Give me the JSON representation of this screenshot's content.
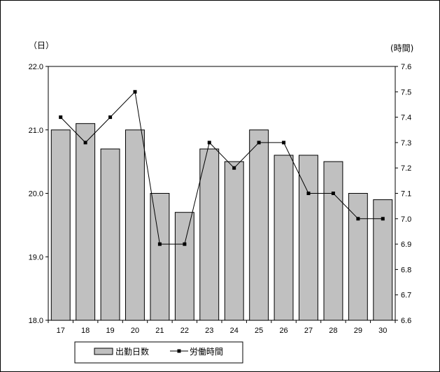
{
  "chart_data": {
    "type": "bar+line",
    "categories": [
      "17",
      "18",
      "19",
      "20",
      "21",
      "22",
      "23",
      "24",
      "25",
      "26",
      "27",
      "28",
      "29",
      "30"
    ],
    "series": [
      {
        "name": "出勤日数",
        "type": "bar",
        "axis": "left",
        "values": [
          21.0,
          21.1,
          20.7,
          21.0,
          20.0,
          19.7,
          20.7,
          20.5,
          21.0,
          20.6,
          20.6,
          20.5,
          20.0,
          19.9
        ],
        "color": "#c0c0c0"
      },
      {
        "name": "労働時間",
        "type": "line",
        "axis": "right",
        "values": [
          7.4,
          7.3,
          7.4,
          7.5,
          6.9,
          6.9,
          7.3,
          7.2,
          7.3,
          7.3,
          7.1,
          7.1,
          7.0,
          7.0
        ],
        "color": "#000000"
      }
    ],
    "y_left": {
      "unit_label": "（日）",
      "ylim": [
        18.0,
        22.0
      ],
      "ticks": [
        "18.0",
        "19.0",
        "20.0",
        "21.0",
        "22.0"
      ]
    },
    "y_right": {
      "unit_label": "(時間)",
      "ylim": [
        6.6,
        7.6
      ],
      "ticks": [
        "6.6",
        "6.7",
        "6.8",
        "6.9",
        "7.0",
        "7.1",
        "7.2",
        "7.3",
        "7.4",
        "7.5",
        "7.6"
      ]
    },
    "grid": false,
    "legend_position": "bottom-center"
  }
}
